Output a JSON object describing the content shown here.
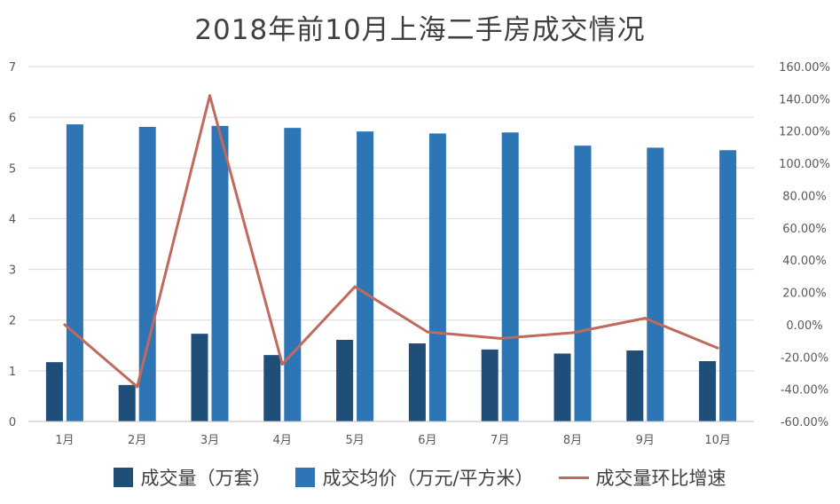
{
  "chart_data": {
    "type": "bar",
    "title": "2018年前10月上海二手房成交情况",
    "categories": [
      "1月",
      "2月",
      "3月",
      "4月",
      "5月",
      "6月",
      "7月",
      "8月",
      "9月",
      "10月"
    ],
    "series": [
      {
        "name": "成交量（万套）",
        "kind": "bar",
        "axis": "left",
        "color": "#1f4e79",
        "values": [
          1.17,
          0.72,
          1.73,
          1.31,
          1.61,
          1.54,
          1.42,
          1.34,
          1.4,
          1.19
        ]
      },
      {
        "name": "成交均价（万元/平方米）",
        "kind": "bar",
        "axis": "left",
        "color": "#2e75b6",
        "values": [
          5.86,
          5.81,
          5.83,
          5.79,
          5.72,
          5.68,
          5.7,
          5.44,
          5.4,
          5.35
        ]
      },
      {
        "name": "成交量环比增速",
        "kind": "line",
        "axis": "right",
        "color": "#c0695c",
        "values": [
          0.0,
          -38.5,
          142.0,
          -24.5,
          23.5,
          -4.5,
          -8.5,
          -5.0,
          4.0,
          -14.5
        ]
      }
    ],
    "left_axis": {
      "min": 0,
      "max": 7,
      "ticks": [
        "0",
        "1",
        "2",
        "3",
        "4",
        "5",
        "6",
        "7"
      ]
    },
    "right_axis": {
      "min": -60,
      "max": 160,
      "ticks": [
        "-60.00%",
        "-40.00%",
        "-20.00%",
        "0.00%",
        "20.00%",
        "40.00%",
        "60.00%",
        "80.00%",
        "100.00%",
        "120.00%",
        "140.00%",
        "160.00%"
      ]
    },
    "grid": true,
    "legend": "bottom"
  }
}
